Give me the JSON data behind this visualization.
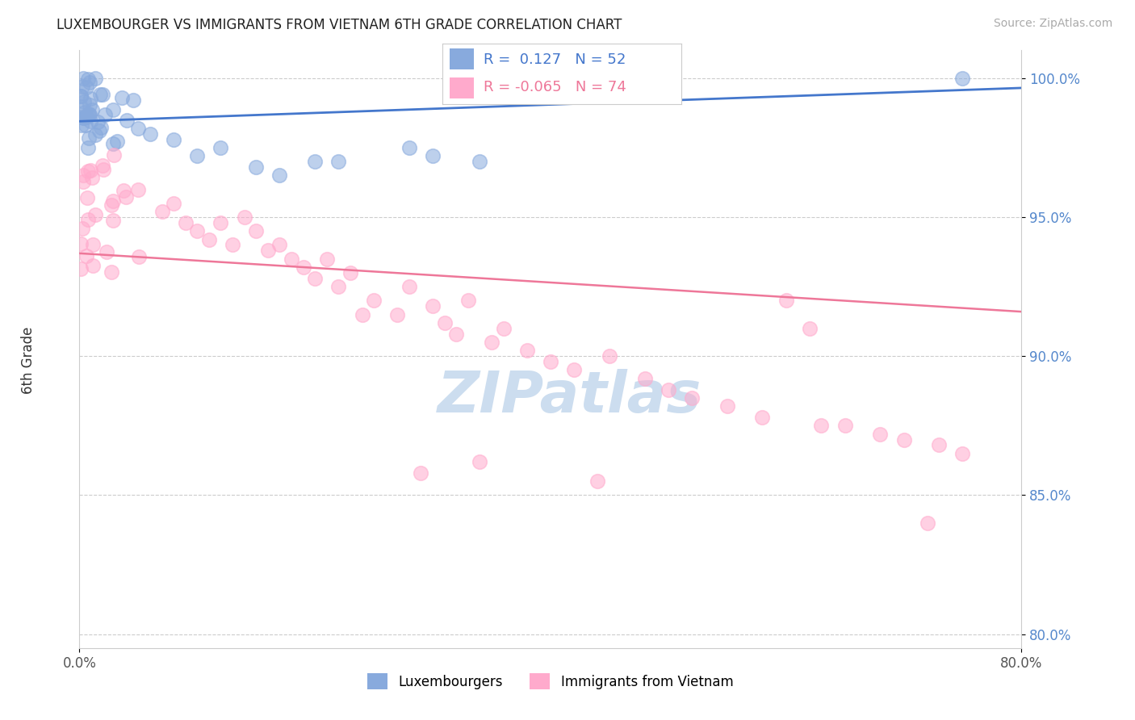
{
  "title": "LUXEMBOURGER VS IMMIGRANTS FROM VIETNAM 6TH GRADE CORRELATION CHART",
  "source": "Source: ZipAtlas.com",
  "xlabel_blue": "Luxembourgers",
  "xlabel_pink": "Immigrants from Vietnam",
  "ylabel": "6th Grade",
  "xmin": 0.0,
  "xmax": 0.8,
  "ymin": 0.795,
  "ymax": 1.01,
  "blue_R": 0.127,
  "blue_N": 52,
  "pink_R": -0.065,
  "pink_N": 74,
  "blue_color": "#88AADD",
  "pink_color": "#FFAACC",
  "blue_line_color": "#4477CC",
  "pink_line_color": "#EE7799",
  "blue_line_y0": 0.9845,
  "blue_line_y1": 0.9965,
  "pink_line_y0": 0.937,
  "pink_line_y1": 0.916,
  "yticks": [
    0.8,
    0.85,
    0.9,
    0.95,
    1.0
  ],
  "ytick_labels": [
    "80.0%",
    "85.0%",
    "90.0%",
    "95.0%",
    "100.0%"
  ],
  "xticks": [
    0.0,
    0.8
  ],
  "xtick_labels": [
    "0.0%",
    "80.0%"
  ],
  "background_color": "#ffffff",
  "grid_color": "#cccccc",
  "watermark_text": "ZIPatlas",
  "watermark_color": "#ccddef"
}
